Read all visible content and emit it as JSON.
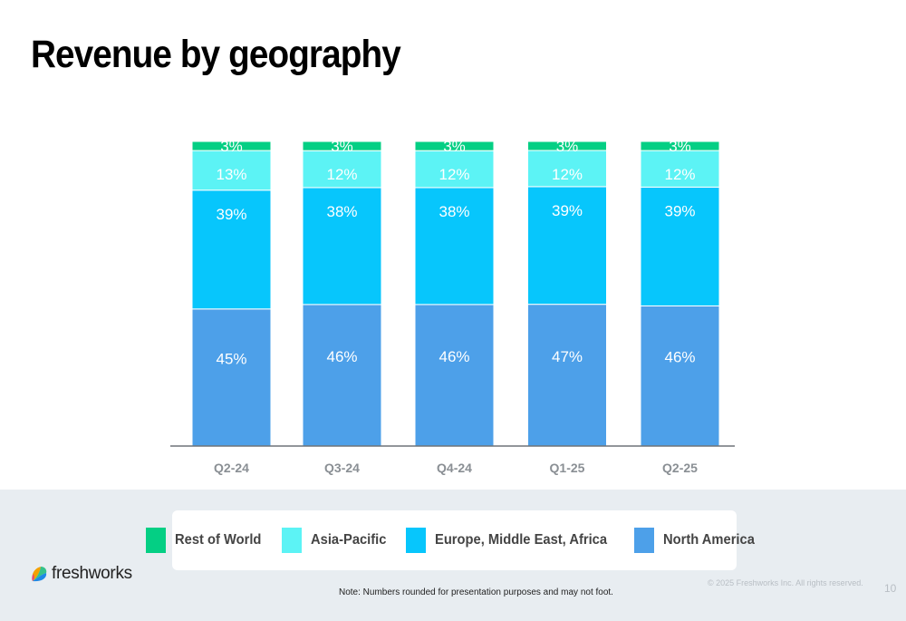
{
  "title": "Revenue by geography",
  "chart_data": {
    "type": "bar",
    "stacked": true,
    "categories": [
      "Q2-24",
      "Q3-24",
      "Q4-24",
      "Q1-25",
      "Q2-25"
    ],
    "series": [
      {
        "name": "North America",
        "color": "#4da0e9",
        "values": [
          45,
          46,
          46,
          47,
          46
        ],
        "labels": [
          "45%",
          "46%",
          "46%",
          "47%",
          "46%"
        ]
      },
      {
        "name": "Europe, Middle East, Africa",
        "color": "#07c6fc",
        "values": [
          39,
          38,
          38,
          39,
          39
        ],
        "labels": [
          "39%",
          "38%",
          "38%",
          "39%",
          "39%"
        ]
      },
      {
        "name": "Asia-Pacific",
        "color": "#5cf3f5",
        "values": [
          13,
          12,
          12,
          12,
          12
        ],
        "labels": [
          "13%",
          "12%",
          "12%",
          "12%",
          "12%"
        ]
      },
      {
        "name": "Rest of World",
        "color": "#04cf84",
        "values": [
          3,
          3,
          3,
          3,
          3
        ],
        "labels": [
          "3%",
          "3%",
          "3%",
          "3%",
          "3%"
        ]
      }
    ],
    "ylim": [
      0,
      100
    ],
    "grid": false,
    "legend_position": "bottom"
  },
  "legend": [
    {
      "label": "Rest of World",
      "color": "#04cf84"
    },
    {
      "label": "Asia-Pacific",
      "color": "#5cf3f5"
    },
    {
      "label": "Europe, Middle East, Africa",
      "color": "#07c6fc"
    },
    {
      "label": "North America",
      "color": "#4da0e9"
    }
  ],
  "footer": {
    "logo_text": "freshworks",
    "note": "Note: Numbers rounded for presentation purposes and may not foot.",
    "copyright": "© 2025 Freshworks Inc. All rights reserved.",
    "page_number": "10"
  }
}
